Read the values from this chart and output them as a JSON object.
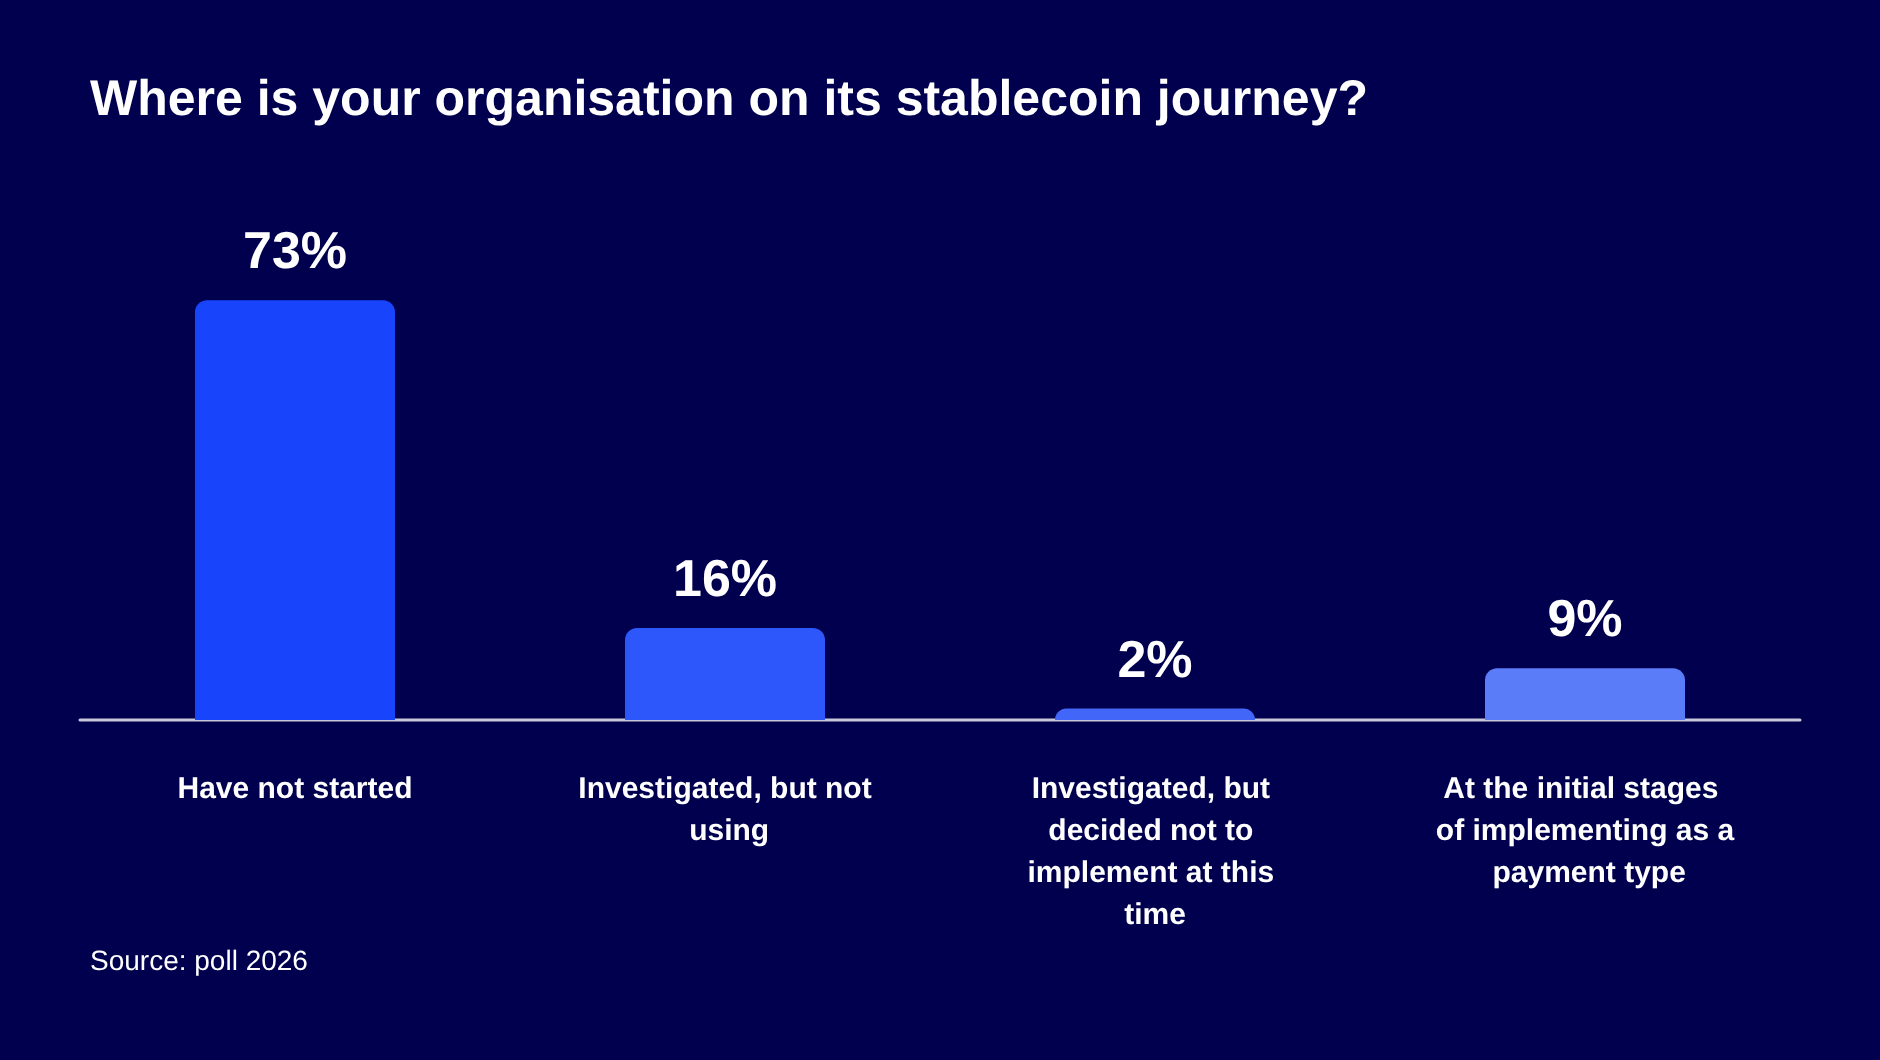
{
  "chart_data": {
    "type": "bar",
    "title": "Where is your organisation on its stablecoin journey?",
    "categories": [
      "Have not started",
      "Investigated, but not using",
      "Investigated, but decided not to implement at this time",
      "At the initial stages of implementing as a payment type"
    ],
    "values": [
      73,
      16,
      2,
      9
    ],
    "value_labels": [
      "73%",
      "16%",
      "2%",
      "9%"
    ],
    "colors": [
      "#1845fb",
      "#2d57fb",
      "#4266f7",
      "#5b7cf8"
    ],
    "tick_labels": "x",
    "annotations": [
      "Source: poll 2026"
    ]
  }
}
